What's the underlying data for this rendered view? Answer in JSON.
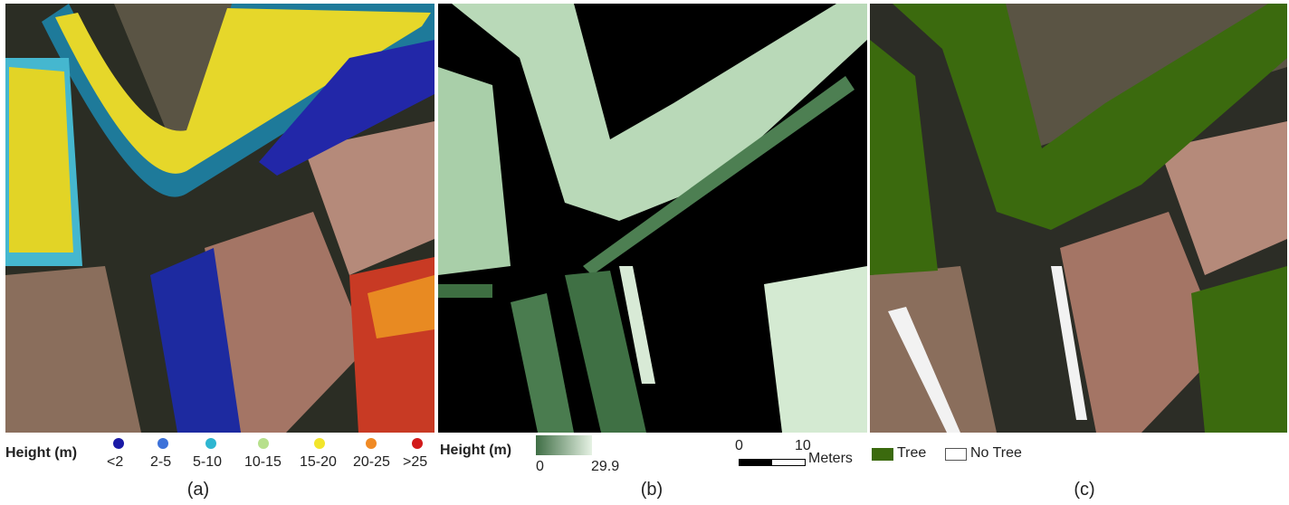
{
  "panel_a": {
    "legend_title": "Height (m)",
    "classes": [
      {
        "label": "<2",
        "color": "#1a1aa6"
      },
      {
        "label": "2-5",
        "color": "#3d72d9"
      },
      {
        "label": "5-10",
        "color": "#2eb6d1"
      },
      {
        "label": "10-15",
        "color": "#b7e08c"
      },
      {
        "label": "15-20",
        "color": "#f2e52b"
      },
      {
        "label": "20-25",
        "color": "#f08a24"
      },
      {
        "label": ">25",
        "color": "#d21a1a"
      }
    ],
    "caption": "(a)"
  },
  "panel_b": {
    "legend_title": "Height (m)",
    "ramp_min": "0",
    "ramp_max": "29.9",
    "ramp_colors": [
      "#3f6e45",
      "#e6f2e4"
    ],
    "scale_start": "0",
    "scale_mid": "10",
    "scale_unit": "Meters",
    "caption": "(b)"
  },
  "panel_c": {
    "tree_label": "Tree",
    "no_tree_label": "No Tree",
    "tree_color": "#3b6a0e",
    "caption": "(c)"
  }
}
